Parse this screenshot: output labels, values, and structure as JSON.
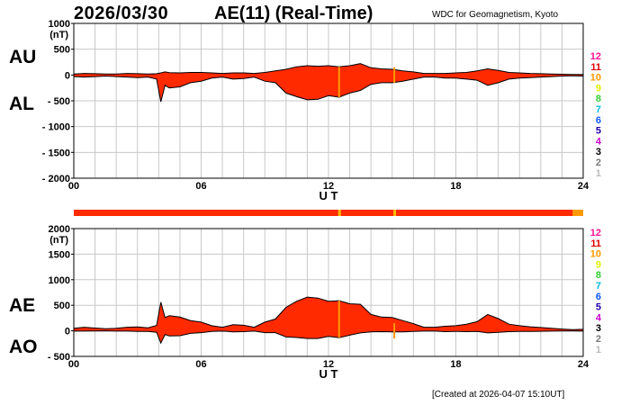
{
  "header": {
    "date": "2026/03/30",
    "title": "AE(11) (Real-Time)",
    "source": "WDC for Geomagnetism, Kyoto"
  },
  "footer": {
    "created": "[Created at 2026-04-07 15:10UT]"
  },
  "colors": {
    "fill": "#ff2a00",
    "legend": [
      "#ff1493",
      "#e00000",
      "#ff9900",
      "#ddee00",
      "#33cc33",
      "#00bbdd",
      "#1155ff",
      "#2200aa",
      "#cc00cc",
      "#000000",
      "#777777",
      "#bbbbbb"
    ]
  },
  "legend_labels": [
    "12",
    "11",
    "10",
    "9",
    "8",
    "7",
    "6",
    "5",
    "4",
    "3",
    "2",
    "1"
  ],
  "chart_data": [
    {
      "type": "area",
      "upper_label": "AU",
      "lower_label": "AL",
      "unit": "(nT)",
      "xlabel": "U T",
      "xlim": [
        0,
        24
      ],
      "xticks": [
        "00",
        "06",
        "12",
        "18",
        "24"
      ],
      "ylim": [
        -2000,
        1000
      ],
      "yticks": [
        "1000",
        "500",
        "0",
        "- 500",
        "- 1000",
        "- 1500",
        "- 2000"
      ],
      "grid": true,
      "x": [
        0,
        0.5,
        1,
        1.5,
        2,
        2.5,
        3,
        3.5,
        3.9,
        4.1,
        4.3,
        4.5,
        5,
        5.5,
        6,
        6.5,
        7,
        7.5,
        8,
        8.5,
        9,
        9.5,
        10,
        10.5,
        11,
        11.5,
        12,
        12.5,
        13,
        13.5,
        14,
        14.5,
        15,
        15.5,
        16,
        16.5,
        17,
        17.5,
        18,
        18.5,
        19,
        19.5,
        20,
        20.5,
        21,
        21.5,
        22,
        22.5,
        23,
        23.5,
        24
      ],
      "series": [
        {
          "name": "AU",
          "values": [
            20,
            30,
            25,
            20,
            20,
            30,
            25,
            20,
            25,
            40,
            60,
            45,
            40,
            50,
            50,
            40,
            30,
            40,
            40,
            30,
            50,
            80,
            110,
            160,
            180,
            170,
            180,
            160,
            180,
            220,
            140,
            120,
            110,
            80,
            60,
            30,
            30,
            30,
            40,
            50,
            80,
            120,
            90,
            50,
            40,
            30,
            25,
            20,
            15,
            10,
            10
          ]
        },
        {
          "name": "AL",
          "values": [
            -30,
            -40,
            -30,
            -20,
            -30,
            -40,
            -50,
            -40,
            -80,
            -520,
            -200,
            -250,
            -230,
            -150,
            -120,
            -60,
            -40,
            -80,
            -70,
            -40,
            -120,
            -150,
            -350,
            -420,
            -480,
            -470,
            -400,
            -430,
            -350,
            -300,
            -180,
            -150,
            -150,
            -120,
            -80,
            -40,
            -40,
            -60,
            -60,
            -80,
            -100,
            -200,
            -150,
            -80,
            -60,
            -50,
            -40,
            -30,
            -20,
            -15,
            -20
          ]
        }
      ]
    },
    {
      "type": "area",
      "upper_label": "AE",
      "lower_label": "AO",
      "unit": "(nT)",
      "xlabel": "U T",
      "xlim": [
        0,
        24
      ],
      "xticks": [
        "00",
        "06",
        "12",
        "18",
        "24"
      ],
      "ylim": [
        -500,
        2000
      ],
      "yticks": [
        "2000",
        "1500",
        "1000",
        "500",
        "0",
        "- 500"
      ],
      "grid": true,
      "x": [
        0,
        0.5,
        1,
        1.5,
        2,
        2.5,
        3,
        3.5,
        3.9,
        4.1,
        4.3,
        4.5,
        5,
        5.5,
        6,
        6.5,
        7,
        7.5,
        8,
        8.5,
        9,
        9.5,
        10,
        10.5,
        11,
        11.5,
        12,
        12.5,
        13,
        13.5,
        14,
        14.5,
        15,
        15.5,
        16,
        16.5,
        17,
        17.5,
        18,
        18.5,
        19,
        19.5,
        20,
        20.5,
        21,
        21.5,
        22,
        22.5,
        23,
        23.5,
        24
      ],
      "series": [
        {
          "name": "AE",
          "values": [
            50,
            70,
            55,
            40,
            50,
            70,
            75,
            60,
            105,
            560,
            260,
            295,
            270,
            200,
            170,
            100,
            70,
            120,
            110,
            70,
            170,
            230,
            460,
            580,
            660,
            640,
            580,
            590,
            530,
            520,
            320,
            270,
            260,
            200,
            140,
            70,
            70,
            90,
            100,
            130,
            180,
            320,
            240,
            130,
            100,
            80,
            65,
            50,
            35,
            25,
            30
          ]
        },
        {
          "name": "AO",
          "values": [
            -5,
            -5,
            -3,
            0,
            -5,
            -5,
            -12,
            -10,
            -28,
            -240,
            -70,
            -100,
            -95,
            -50,
            -35,
            -10,
            -5,
            -20,
            -15,
            -5,
            -35,
            -35,
            -120,
            -130,
            -150,
            -150,
            -110,
            -135,
            -85,
            -40,
            -20,
            -15,
            -20,
            -20,
            -10,
            -5,
            -5,
            -15,
            -10,
            -15,
            -10,
            -40,
            -30,
            -15,
            -10,
            -10,
            -8,
            -5,
            -3,
            -3,
            -5
          ]
        }
      ]
    }
  ]
}
